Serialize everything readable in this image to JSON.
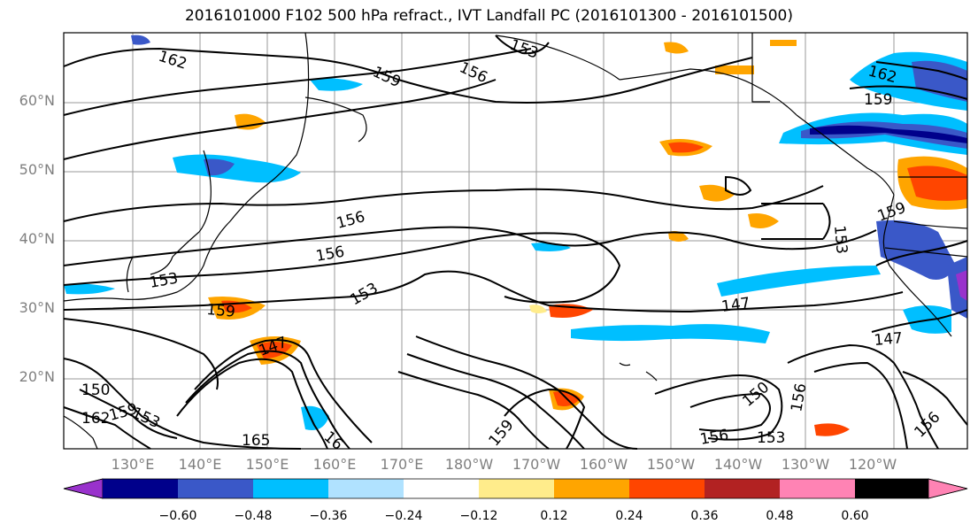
{
  "title": "2016101000 F102 500 hPa refract., IVT Landfall PC (2016101300 - 2016101500)",
  "map": {
    "lat_labels": [
      "60°N",
      "50°N",
      "40°N",
      "30°N",
      "20°N"
    ],
    "lon_labels": [
      "130°E",
      "140°E",
      "150°E",
      "160°E",
      "170°E",
      "180°W",
      "170°W",
      "160°W",
      "150°W",
      "140°W",
      "130°W",
      "120°W"
    ],
    "contour_labels": [
      "162",
      "159",
      "156",
      "153",
      "156",
      "156",
      "153",
      "159",
      "153",
      "147",
      "150",
      "153",
      "162",
      "159",
      "165",
      "16",
      "159",
      "156",
      "153",
      "150",
      "156",
      "147",
      "147",
      "153",
      "156",
      "162",
      "159",
      "159"
    ]
  },
  "colorbar": {
    "colors": [
      "#9932cc",
      "#00008b",
      "#3a58c8",
      "#00bfff",
      "#b0e2ff",
      "#ffffff",
      "#ffec8b",
      "#ffa500",
      "#ff4500",
      "#b22222",
      "#ff83b4"
    ],
    "ticks": [
      "−0.60",
      "−0.48",
      "−0.36",
      "−0.24",
      "−0.12",
      "0.12",
      "0.24",
      "0.36",
      "0.48",
      "0.60"
    ]
  }
}
